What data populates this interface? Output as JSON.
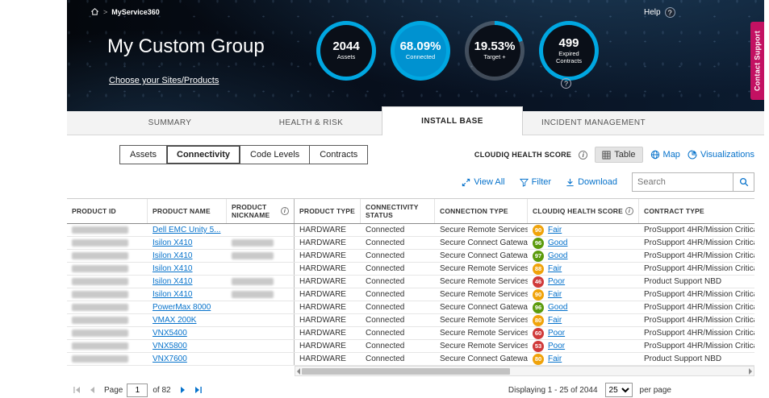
{
  "colors": {
    "accent": "#00a7e1",
    "ring_fill": "#0092d0",
    "link": "#0672cb",
    "ribbon": "#c31162",
    "health": {
      "Good": "#5b9b0c",
      "Fair": "#f0a30a",
      "Poor": "#d03a3a"
    }
  },
  "header": {
    "breadcrumb": "MyService360",
    "title": "My Custom Group",
    "sites_link": "Choose your Sites/Products",
    "help_label": "Help",
    "contact_support": "Contact Support",
    "kpis": [
      {
        "value": "2044",
        "label": "Assets",
        "percent": 100,
        "filled": false
      },
      {
        "value": "68.09%",
        "label": "Connected",
        "percent": 100,
        "filled": true
      },
      {
        "value": "19.53%",
        "label": "Target +",
        "percent": 19.53,
        "filled": false
      },
      {
        "value": "499",
        "label": "Expired Contracts",
        "percent": 100,
        "filled": false
      }
    ]
  },
  "tabs": [
    {
      "label": "SUMMARY"
    },
    {
      "label": "HEALTH & RISK"
    },
    {
      "label": "INSTALL BASE"
    },
    {
      "label": "INCIDENT MANAGEMENT"
    }
  ],
  "subtabs": [
    {
      "label": "Assets"
    },
    {
      "label": "Connectivity"
    },
    {
      "label": "Code Levels"
    },
    {
      "label": "Contracts"
    }
  ],
  "view_switch": {
    "label": "CLOUDIQ HEALTH SCORE",
    "table": "Table",
    "map": "Map",
    "visualizations": "Visualizations"
  },
  "actions": {
    "view_all": "View All",
    "filter": "Filter",
    "download": "Download",
    "search_placeholder": "Search"
  },
  "table": {
    "columns": [
      "PRODUCT ID",
      "PRODUCT NAME",
      "PRODUCT NICKNAME",
      "PRODUCT TYPE",
      "CONNECTIVITY STATUS",
      "CONNECTION TYPE",
      "CLOUDIQ HEALTH SCORE",
      "CONTRACT TYPE"
    ],
    "rows": [
      {
        "product_name": "Dell EMC Unity 5...",
        "nickname_redacted": false,
        "product_type": "HARDWARE",
        "connectivity_status": "Connected",
        "connection_type": "Secure Remote Services",
        "health_score": "90",
        "health_label": "Fair",
        "contract_type": "ProSupport 4HR/Mission Critical"
      },
      {
        "product_name": "Isilon X410",
        "nickname_redacted": true,
        "product_type": "HARDWARE",
        "connectivity_status": "Connected",
        "connection_type": "Secure Connect Gateway",
        "health_score": "96",
        "health_label": "Good",
        "contract_type": "ProSupport 4HR/Mission Critical"
      },
      {
        "product_name": "Isilon X410",
        "nickname_redacted": true,
        "product_type": "HARDWARE",
        "connectivity_status": "Connected",
        "connection_type": "Secure Connect Gateway",
        "health_score": "97",
        "health_label": "Good",
        "contract_type": "ProSupport 4HR/Mission Critical"
      },
      {
        "product_name": "Isilon X410",
        "nickname_redacted": false,
        "product_type": "HARDWARE",
        "connectivity_status": "Connected",
        "connection_type": "Secure Remote Services",
        "health_score": "88",
        "health_label": "Fair",
        "contract_type": "ProSupport 4HR/Mission Critical"
      },
      {
        "product_name": "Isilon X410",
        "nickname_redacted": true,
        "product_type": "HARDWARE",
        "connectivity_status": "Connected",
        "connection_type": "Secure Remote Services",
        "health_score": "46",
        "health_label": "Poor",
        "contract_type": "Product Support NBD"
      },
      {
        "product_name": "Isilon X410",
        "nickname_redacted": true,
        "product_type": "HARDWARE",
        "connectivity_status": "Connected",
        "connection_type": "Secure Remote Services",
        "health_score": "90",
        "health_label": "Fair",
        "contract_type": "ProSupport 4HR/Mission Critical"
      },
      {
        "product_name": "PowerMax 8000",
        "nickname_redacted": false,
        "product_type": "HARDWARE",
        "connectivity_status": "Connected",
        "connection_type": "Secure Connect Gateway",
        "health_score": "96",
        "health_label": "Good",
        "contract_type": "ProSupport 4HR/Mission Critical"
      },
      {
        "product_name": "VMAX 200K",
        "nickname_redacted": false,
        "product_type": "HARDWARE",
        "connectivity_status": "Connected",
        "connection_type": "Secure Remote Services",
        "health_score": "80",
        "health_label": "Fair",
        "contract_type": "ProSupport 4HR/Mission Critical"
      },
      {
        "product_name": "VNX5400",
        "nickname_redacted": false,
        "product_type": "HARDWARE",
        "connectivity_status": "Connected",
        "connection_type": "Secure Remote Services",
        "health_score": "60",
        "health_label": "Poor",
        "contract_type": "ProSupport 4HR/Mission Critical"
      },
      {
        "product_name": "VNX5800",
        "nickname_redacted": false,
        "product_type": "HARDWARE",
        "connectivity_status": "Connected",
        "connection_type": "Secure Remote Services",
        "health_score": "53",
        "health_label": "Poor",
        "contract_type": "ProSupport 4HR/Mission Critical"
      },
      {
        "product_name": "VNX7600",
        "nickname_redacted": false,
        "product_type": "HARDWARE",
        "connectivity_status": "Connected",
        "connection_type": "Secure Connect Gateway",
        "health_score": "80",
        "health_label": "Fair",
        "contract_type": "Product Support NBD"
      }
    ]
  },
  "pagination": {
    "page_label": "Page",
    "page_value": "1",
    "of_label": "of 82",
    "displaying": "Displaying  1 - 25 of 2044",
    "page_size": "25",
    "per_page_label": "per page"
  }
}
